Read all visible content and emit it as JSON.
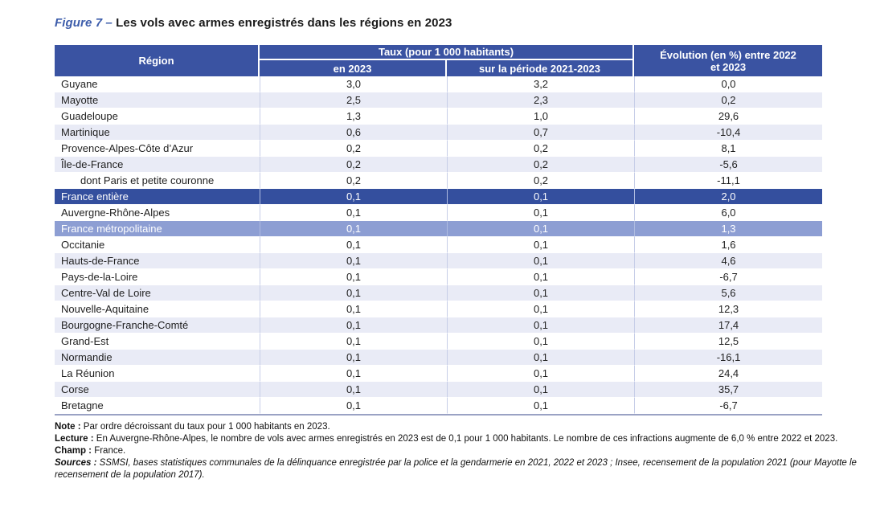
{
  "title": {
    "figure_label": "Figure 7 –",
    "text": "Les vols avec armes enregistrés dans les régions en 2023"
  },
  "table": {
    "header": {
      "region": "Région",
      "taux_group": "Taux (pour 1 000 habitants)",
      "sub_2023": "en 2023",
      "sub_periode": "sur la période 2021-2023",
      "evolution": "Évolution (en %) entre 2022 et 2023"
    },
    "rows": [
      {
        "region": "Guyane",
        "taux_2023": "3,0",
        "taux_periode": "3,2",
        "evolution": "0,0"
      },
      {
        "region": "Mayotte",
        "taux_2023": "2,5",
        "taux_periode": "2,3",
        "evolution": "0,2"
      },
      {
        "region": "Guadeloupe",
        "taux_2023": "1,3",
        "taux_periode": "1,0",
        "evolution": "29,6"
      },
      {
        "region": "Martinique",
        "taux_2023": "0,6",
        "taux_periode": "0,7",
        "evolution": "-10,4"
      },
      {
        "region": "Provence-Alpes-Côte d’Azur",
        "taux_2023": "0,2",
        "taux_periode": "0,2",
        "evolution": "8,1"
      },
      {
        "region": "Île-de-France",
        "taux_2023": "0,2",
        "taux_periode": "0,2",
        "evolution": "-5,6"
      },
      {
        "region": "dont Paris et petite couronne",
        "taux_2023": "0,2",
        "taux_periode": "0,2",
        "evolution": "-11,1",
        "indent": true
      },
      {
        "region": "France entière",
        "taux_2023": "0,1",
        "taux_periode": "0,1",
        "evolution": "2,0",
        "highlight": "dark"
      },
      {
        "region": "Auvergne-Rhône-Alpes",
        "taux_2023": "0,1",
        "taux_periode": "0,1",
        "evolution": "6,0"
      },
      {
        "region": "France métropolitaine",
        "taux_2023": "0,1",
        "taux_periode": "0,1",
        "evolution": "1,3",
        "highlight": "medium"
      },
      {
        "region": "Occitanie",
        "taux_2023": "0,1",
        "taux_periode": "0,1",
        "evolution": "1,6"
      },
      {
        "region": "Hauts-de-France",
        "taux_2023": "0,1",
        "taux_periode": "0,1",
        "evolution": "4,6"
      },
      {
        "region": "Pays-de-la-Loire",
        "taux_2023": "0,1",
        "taux_periode": "0,1",
        "evolution": "-6,7"
      },
      {
        "region": "Centre-Val de Loire",
        "taux_2023": "0,1",
        "taux_periode": "0,1",
        "evolution": "5,6"
      },
      {
        "region": "Nouvelle-Aquitaine",
        "taux_2023": "0,1",
        "taux_periode": "0,1",
        "evolution": "12,3"
      },
      {
        "region": "Bourgogne-Franche-Comté",
        "taux_2023": "0,1",
        "taux_periode": "0,1",
        "evolution": "17,4"
      },
      {
        "region": "Grand-Est",
        "taux_2023": "0,1",
        "taux_periode": "0,1",
        "evolution": "12,5"
      },
      {
        "region": "Normandie",
        "taux_2023": "0,1",
        "taux_periode": "0,1",
        "evolution": "-16,1"
      },
      {
        "region": "La Réunion",
        "taux_2023": "0,1",
        "taux_periode": "0,1",
        "evolution": "24,4"
      },
      {
        "region": "Corse",
        "taux_2023": "0,1",
        "taux_periode": "0,1",
        "evolution": "35,7"
      },
      {
        "region": "Bretagne",
        "taux_2023": "0,1",
        "taux_periode": "0,1",
        "evolution": "-6,7"
      }
    ]
  },
  "notes": {
    "note_label": "Note :",
    "note_text": "Par ordre décroissant du taux pour 1 000 habitants en 2023.",
    "lecture_label": "Lecture :",
    "lecture_text": "En Auvergne-Rhône-Alpes, le nombre de vols avec armes enregistrés en 2023 est de 0,1 pour 1 000 habitants. Le nombre de ces infractions augmente de 6,0 % entre 2022 et 2023.",
    "champ_label": "Champ :",
    "champ_text": "France.",
    "sources_label": "Sources :",
    "sources_text": "SSMSI, bases statistiques communales de la délinquance enregistrée par la police et la gendarmerie en 2021, 2022 et 2023 ; Insee, recensement de la population 2021 (pour Mayotte le recensement de la population 2017)."
  },
  "colors": {
    "header_bg": "#3a53a2",
    "row_alt_bg": "#e9ebf6",
    "france_entiere_bg": "#344f9e",
    "france_metropolitaine_bg": "#8d9ed3",
    "title_accent": "#3d5dab",
    "table_bottom_border": "#9aa2c4",
    "column_divider": "#c7cee8",
    "highlight_text": "#ffffff"
  },
  "chart_data": {
    "type": "table",
    "title": "Figure 7 – Les vols avec armes enregistrés dans les régions en 2023",
    "columns": [
      "Région",
      "Taux (pour 1 000 habitants) en 2023",
      "Taux (pour 1 000 habitants) sur la période 2021-2023",
      "Évolution (en %) entre 2022 et 2023"
    ],
    "rows": [
      [
        "Guyane",
        3.0,
        3.2,
        0.0
      ],
      [
        "Mayotte",
        2.5,
        2.3,
        0.2
      ],
      [
        "Guadeloupe",
        1.3,
        1.0,
        29.6
      ],
      [
        "Martinique",
        0.6,
        0.7,
        -10.4
      ],
      [
        "Provence-Alpes-Côte d’Azur",
        0.2,
        0.2,
        8.1
      ],
      [
        "Île-de-France",
        0.2,
        0.2,
        -5.6
      ],
      [
        "dont Paris et petite couronne",
        0.2,
        0.2,
        -11.1
      ],
      [
        "France entière",
        0.1,
        0.1,
        2.0
      ],
      [
        "Auvergne-Rhône-Alpes",
        0.1,
        0.1,
        6.0
      ],
      [
        "France métropolitaine",
        0.1,
        0.1,
        1.3
      ],
      [
        "Occitanie",
        0.1,
        0.1,
        1.6
      ],
      [
        "Hauts-de-France",
        0.1,
        0.1,
        4.6
      ],
      [
        "Pays-de-la-Loire",
        0.1,
        0.1,
        -6.7
      ],
      [
        "Centre-Val de Loire",
        0.1,
        0.1,
        5.6
      ],
      [
        "Nouvelle-Aquitaine",
        0.1,
        0.1,
        12.3
      ],
      [
        "Bourgogne-Franche-Comté",
        0.1,
        0.1,
        17.4
      ],
      [
        "Grand-Est",
        0.1,
        0.1,
        12.5
      ],
      [
        "Normandie",
        0.1,
        0.1,
        -16.1
      ],
      [
        "La Réunion",
        0.1,
        0.1,
        24.4
      ],
      [
        "Corse",
        0.1,
        0.1,
        35.7
      ],
      [
        "Bretagne",
        0.1,
        0.1,
        -6.7
      ]
    ],
    "sort_order": "descending by taux pour 1 000 habitants en 2023",
    "notes": "Champ : France. Sources : SSMSI ; Insee."
  }
}
